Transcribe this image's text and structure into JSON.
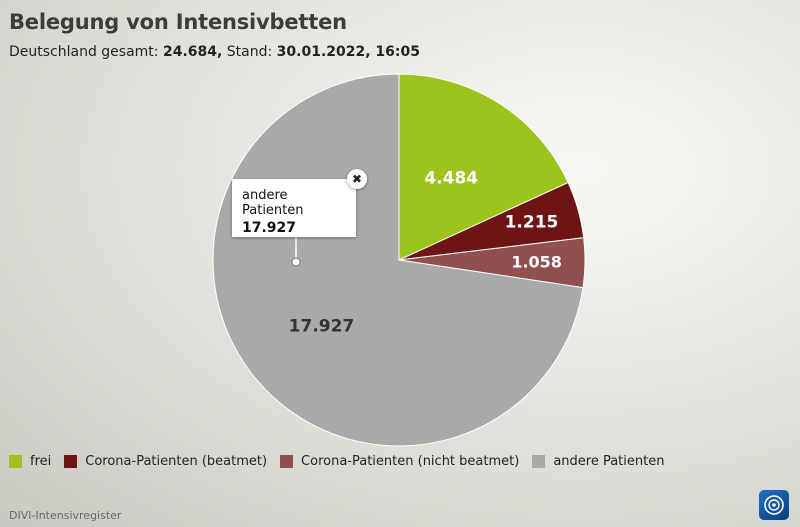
{
  "header": {
    "title": "Belegung von Intensivbetten",
    "subtitle_prefix": "Deutschland gesamt: ",
    "total": "24.684,",
    "subtitle_mid": " Stand: ",
    "stand": "30.01.2022, 16:05"
  },
  "chart_data": {
    "type": "pie",
    "categories": [
      "frei",
      "Corona-Patienten (beatmet)",
      "Corona-Patienten (nicht beatmet)",
      "andere Patienten"
    ],
    "values": [
      4484,
      1215,
      1058,
      17927
    ],
    "value_labels": [
      "4.484",
      "1.215",
      "1.058",
      "17.927"
    ],
    "colors": [
      "#9dc41d",
      "#6e1414",
      "#915050",
      "#a9a9a9"
    ],
    "label_colors": [
      "#ffffff",
      "#ffffff",
      "#ffffff",
      "#333333"
    ],
    "legend_position": "bottom-left"
  },
  "tooltip": {
    "name": "andere Patienten",
    "value": "17.927"
  },
  "legend": {
    "items": [
      {
        "label": "frei",
        "color": "#9dc41d"
      },
      {
        "label": "Corona-Patienten (beatmet)",
        "color": "#6e1414"
      },
      {
        "label": "Corona-Patienten (nicht beatmet)",
        "color": "#915050"
      },
      {
        "label": "andere Patienten",
        "color": "#a9a9a9"
      }
    ]
  },
  "footer": {
    "source": "DIVI-Intensivregister",
    "logo_icon": "tagesschau-logo-icon"
  }
}
